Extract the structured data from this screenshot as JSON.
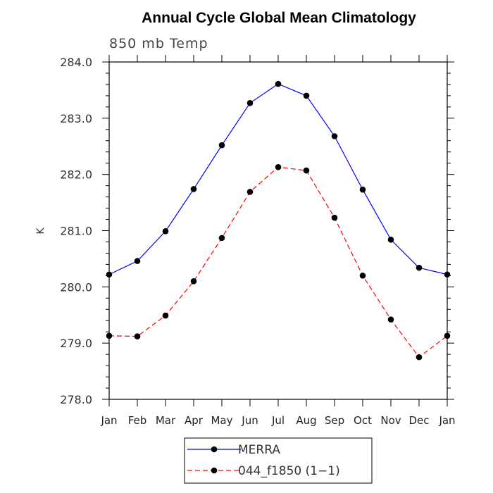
{
  "chart_data": {
    "type": "line",
    "title": "Annual Cycle Global Mean Climatology",
    "subtitle": "850 mb Temp",
    "xlabel": "",
    "ylabel": "K",
    "categories": [
      "Jan",
      "Feb",
      "Mar",
      "Apr",
      "May",
      "Jun",
      "Jul",
      "Aug",
      "Sep",
      "Oct",
      "Nov",
      "Dec",
      "Jan"
    ],
    "ylim": [
      278.0,
      284.0
    ],
    "yticks": [
      "278.0",
      "279.0",
      "280.0",
      "281.0",
      "282.0",
      "283.0",
      "284.0"
    ],
    "grid": false,
    "legend_position": "bottom",
    "series": [
      {
        "name": "MERRA",
        "color": "#0000ff",
        "dash": "solid",
        "values": [
          280.22,
          280.46,
          280.99,
          281.74,
          282.52,
          283.27,
          283.61,
          283.4,
          282.68,
          281.73,
          280.84,
          280.34,
          280.22
        ]
      },
      {
        "name": "044_f1850 (1−1)",
        "color": "#ff0000",
        "dash": "dashed",
        "values": [
          279.13,
          279.12,
          279.49,
          280.1,
          280.87,
          281.69,
          282.13,
          282.07,
          281.23,
          280.2,
          279.42,
          278.75,
          279.13
        ]
      }
    ]
  }
}
